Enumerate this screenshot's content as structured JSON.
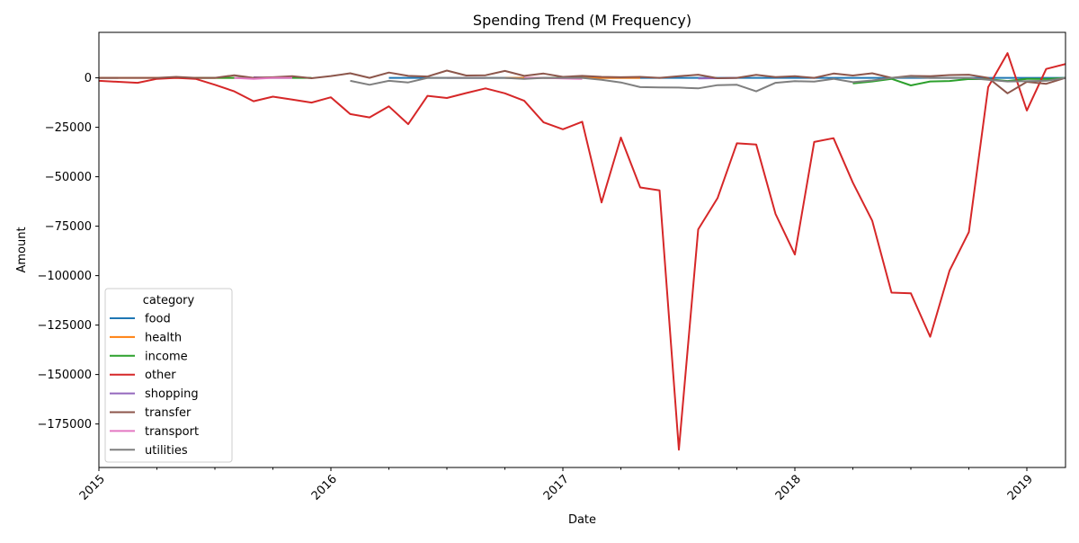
{
  "chart_data": {
    "type": "line",
    "title": "Spending Trend (M Frequency)",
    "xlabel": "Date",
    "ylabel": "Amount",
    "x_ticks": [
      "2015",
      "2016",
      "2017",
      "2018",
      "2019"
    ],
    "y_ticks": [
      0,
      -25000,
      -50000,
      -75000,
      -100000,
      -125000,
      -150000,
      -175000
    ],
    "y_tick_labels": [
      "0",
      "−25000",
      "−50000",
      "−75000",
      "−100000",
      "−125000",
      "−150000",
      "−175000"
    ],
    "ylim": [
      -197000,
      23000
    ],
    "xlim": [
      "2015-01",
      "2019-03"
    ],
    "grid": false,
    "legend": {
      "title": "category",
      "placement": "lower-left"
    },
    "series": [
      {
        "name": "food",
        "color": "#1f77b4",
        "points": [
          [
            "2015-01",
            0
          ],
          [
            "2015-02",
            0
          ],
          [
            "2016-04",
            0
          ],
          [
            "2016-05",
            0
          ],
          [
            "2016-06",
            0
          ],
          [
            "2016-07",
            0
          ],
          [
            "2016-08",
            0
          ],
          [
            "2016-09",
            0
          ],
          [
            "2016-10",
            0
          ],
          [
            "2016-11",
            0
          ],
          [
            "2016-12",
            0
          ],
          [
            "2017-01",
            0
          ],
          [
            "2017-02",
            500
          ],
          [
            "2017-03",
            0
          ],
          [
            "2017-04",
            0
          ],
          [
            "2017-05",
            0
          ],
          [
            "2017-06",
            0
          ],
          [
            "2017-07",
            0
          ],
          [
            "2017-08",
            0
          ],
          [
            "2017-09",
            0
          ],
          [
            "2017-10",
            0
          ],
          [
            "2017-11",
            0
          ],
          [
            "2017-12",
            0
          ],
          [
            "2018-01",
            0
          ],
          [
            "2018-02",
            0
          ],
          [
            "2018-03",
            0
          ],
          [
            "2018-04",
            0
          ],
          [
            "2018-05",
            0
          ],
          [
            "2018-06",
            0
          ],
          [
            "2018-07",
            0
          ],
          [
            "2018-08",
            0
          ],
          [
            "2018-09",
            0
          ],
          [
            "2018-10",
            0
          ],
          [
            "2018-11",
            0
          ],
          [
            "2018-12",
            0
          ],
          [
            "2019-01",
            0
          ],
          [
            "2019-02",
            0
          ],
          [
            "2019-03",
            0
          ]
        ]
      },
      {
        "name": "health",
        "color": "#ff7f0e",
        "points": [
          [
            "2015-01",
            0
          ],
          [
            "2015-02",
            0
          ],
          [
            "2015-03",
            0
          ],
          [
            "2015-04",
            0
          ],
          [
            "2015-05",
            0
          ],
          [
            "2015-06",
            0
          ],
          [
            "2015-07",
            0
          ],
          [
            "2015-08",
            0
          ],
          [
            "2016-10",
            0
          ],
          [
            "2016-11",
            0
          ],
          [
            "2016-12",
            0
          ],
          [
            "2017-01",
            0
          ],
          [
            "2017-02",
            0
          ],
          [
            "2017-03",
            0
          ],
          [
            "2017-04",
            0
          ],
          [
            "2017-05",
            0
          ]
        ]
      },
      {
        "name": "income",
        "color": "#2ca02c",
        "points": [
          [
            "2015-06",
            0
          ],
          [
            "2015-07",
            0
          ],
          [
            "2015-08",
            0
          ],
          [
            "2015-09",
            0
          ],
          [
            "2015-10",
            0
          ],
          [
            "2015-11",
            0
          ],
          [
            "2015-12",
            0
          ],
          [
            "2016-12",
            0
          ],
          [
            "2017-01",
            0
          ],
          [
            "2017-02",
            0
          ],
          [
            "2018-04",
            -2800
          ],
          [
            "2018-05",
            -1800
          ],
          [
            "2018-06",
            -500
          ],
          [
            "2018-07",
            -3800
          ],
          [
            "2018-08",
            -1800
          ],
          [
            "2018-09",
            -1600
          ],
          [
            "2018-10",
            -600
          ],
          [
            "2018-11",
            -700
          ],
          [
            "2018-12",
            -1600
          ],
          [
            "2019-01",
            -500
          ],
          [
            "2019-02",
            -600
          ],
          [
            "2019-03",
            0
          ]
        ]
      },
      {
        "name": "other",
        "color": "#d62728",
        "points": [
          [
            "2015-01",
            -1500
          ],
          [
            "2015-02",
            -2000
          ],
          [
            "2015-03",
            -2500
          ],
          [
            "2015-04",
            -500
          ],
          [
            "2015-05",
            0
          ],
          [
            "2015-06",
            -500
          ],
          [
            "2015-07",
            -3500
          ],
          [
            "2015-08",
            -6800
          ],
          [
            "2015-09",
            -11800
          ],
          [
            "2015-10",
            -9500
          ],
          [
            "2015-11",
            -11000
          ],
          [
            "2015-12",
            -12500
          ],
          [
            "2016-01",
            -9800
          ],
          [
            "2016-02",
            -18300
          ],
          [
            "2016-03",
            -20000
          ],
          [
            "2016-04",
            -14400
          ],
          [
            "2016-05",
            -23400
          ],
          [
            "2016-06",
            -9100
          ],
          [
            "2016-07",
            -10200
          ],
          [
            "2016-08",
            -7700
          ],
          [
            "2016-09",
            -5300
          ],
          [
            "2016-10",
            -7800
          ],
          [
            "2016-11",
            -11600
          ],
          [
            "2016-12",
            -22500
          ],
          [
            "2017-01",
            -26000
          ],
          [
            "2017-02",
            -22200
          ],
          [
            "2017-03",
            -63000
          ],
          [
            "2017-04",
            -30200
          ],
          [
            "2017-05",
            -55400
          ],
          [
            "2017-06",
            -56900
          ],
          [
            "2017-07",
            -188000
          ],
          [
            "2017-08",
            -76600
          ],
          [
            "2017-09",
            -60800
          ],
          [
            "2017-10",
            -33100
          ],
          [
            "2017-11",
            -33700
          ],
          [
            "2017-12",
            -68800
          ],
          [
            "2018-01",
            -89300
          ],
          [
            "2018-02",
            -32400
          ],
          [
            "2018-03",
            -30500
          ],
          [
            "2018-04",
            -53000
          ],
          [
            "2018-05",
            -72200
          ],
          [
            "2018-06",
            -108600
          ],
          [
            "2018-07",
            -108900
          ],
          [
            "2018-08",
            -130900
          ],
          [
            "2018-09",
            -97500
          ],
          [
            "2018-10",
            -78000
          ],
          [
            "2018-11",
            -4700
          ],
          [
            "2018-12",
            12500
          ],
          [
            "2019-01",
            -16500
          ],
          [
            "2019-02",
            4500
          ],
          [
            "2019-03",
            7000
          ]
        ]
      },
      {
        "name": "shopping",
        "color": "#9467bd",
        "points": [
          [
            "2015-09",
            300
          ],
          [
            "2015-10",
            0
          ],
          [
            "2015-11",
            0
          ],
          [
            "2016-07",
            0
          ],
          [
            "2016-08",
            0
          ],
          [
            "2016-09",
            0
          ],
          [
            "2017-08",
            -300
          ],
          [
            "2017-09",
            -200
          ],
          [
            "2017-10",
            0
          ]
        ]
      },
      {
        "name": "transfer",
        "color": "#8c564b",
        "points": [
          [
            "2015-01",
            0
          ],
          [
            "2015-02",
            0
          ],
          [
            "2015-03",
            0
          ],
          [
            "2015-04",
            0
          ],
          [
            "2015-05",
            500
          ],
          [
            "2015-06",
            0
          ],
          [
            "2015-07",
            0
          ],
          [
            "2015-08",
            1300
          ],
          [
            "2015-09",
            0
          ],
          [
            "2015-10",
            300
          ],
          [
            "2015-11",
            800
          ],
          [
            "2015-12",
            -200
          ],
          [
            "2016-01",
            900
          ],
          [
            "2016-02",
            2300
          ],
          [
            "2016-03",
            0
          ],
          [
            "2016-04",
            2700
          ],
          [
            "2016-05",
            1000
          ],
          [
            "2016-06",
            700
          ],
          [
            "2016-07",
            3700
          ],
          [
            "2016-08",
            1200
          ],
          [
            "2016-09",
            1300
          ],
          [
            "2016-10",
            3500
          ],
          [
            "2016-11",
            1000
          ],
          [
            "2016-12",
            2200
          ],
          [
            "2017-01",
            500
          ],
          [
            "2017-02",
            1000
          ],
          [
            "2017-03",
            500
          ],
          [
            "2017-04",
            300
          ],
          [
            "2017-05",
            500
          ],
          [
            "2017-06",
            0
          ],
          [
            "2017-07",
            800
          ],
          [
            "2017-08",
            1600
          ],
          [
            "2017-09",
            -200
          ],
          [
            "2017-10",
            0
          ],
          [
            "2017-11",
            1500
          ],
          [
            "2017-12",
            400
          ],
          [
            "2018-01",
            800
          ],
          [
            "2018-02",
            0
          ],
          [
            "2018-03",
            2200
          ],
          [
            "2018-04",
            1200
          ],
          [
            "2018-05",
            2300
          ],
          [
            "2018-06",
            0
          ],
          [
            "2018-07",
            1000
          ],
          [
            "2018-08",
            800
          ],
          [
            "2018-09",
            1400
          ],
          [
            "2018-10",
            1600
          ],
          [
            "2018-11",
            0
          ],
          [
            "2018-12",
            -7800
          ],
          [
            "2019-01",
            -2000
          ],
          [
            "2019-02",
            -3000
          ],
          [
            "2019-03",
            0
          ]
        ]
      },
      {
        "name": "transport",
        "color": "#e377c2",
        "points": [
          [
            "2015-08",
            0
          ],
          [
            "2015-09",
            -500
          ],
          [
            "2015-10",
            0
          ],
          [
            "2015-11",
            0
          ],
          [
            "2016-11",
            0
          ],
          [
            "2016-12",
            0
          ],
          [
            "2017-01",
            -300
          ],
          [
            "2017-02",
            -500
          ]
        ]
      },
      {
        "name": "utilities",
        "color": "#7f7f7f",
        "points": [
          [
            "2016-02",
            -1500
          ],
          [
            "2016-03",
            -3500
          ],
          [
            "2016-04",
            -1500
          ],
          [
            "2016-05",
            -2300
          ],
          [
            "2016-06",
            0
          ],
          [
            "2016-07",
            0
          ],
          [
            "2016-08",
            0
          ],
          [
            "2016-09",
            0
          ],
          [
            "2016-10",
            0
          ],
          [
            "2016-11",
            -500
          ],
          [
            "2016-12",
            0
          ],
          [
            "2017-01",
            0
          ],
          [
            "2017-02",
            0
          ],
          [
            "2017-03",
            -1000
          ],
          [
            "2017-04",
            -2300
          ],
          [
            "2017-05",
            -4700
          ],
          [
            "2017-06",
            -4800
          ],
          [
            "2017-07",
            -4900
          ],
          [
            "2017-08",
            -5300
          ],
          [
            "2017-09",
            -3700
          ],
          [
            "2017-10",
            -3500
          ],
          [
            "2017-11",
            -6800
          ],
          [
            "2017-12",
            -2500
          ],
          [
            "2018-01",
            -1700
          ],
          [
            "2018-02",
            -1900
          ],
          [
            "2018-03",
            -500
          ],
          [
            "2018-04",
            -2200
          ],
          [
            "2018-05",
            -1300
          ],
          [
            "2018-06",
            0
          ],
          [
            "2018-07",
            500
          ],
          [
            "2018-08",
            0
          ],
          [
            "2018-09",
            0
          ],
          [
            "2018-10",
            0
          ],
          [
            "2018-11",
            -1000
          ],
          [
            "2018-12",
            -1800
          ],
          [
            "2019-01",
            -1700
          ],
          [
            "2019-02",
            -1500
          ],
          [
            "2019-03",
            0
          ]
        ]
      }
    ]
  }
}
